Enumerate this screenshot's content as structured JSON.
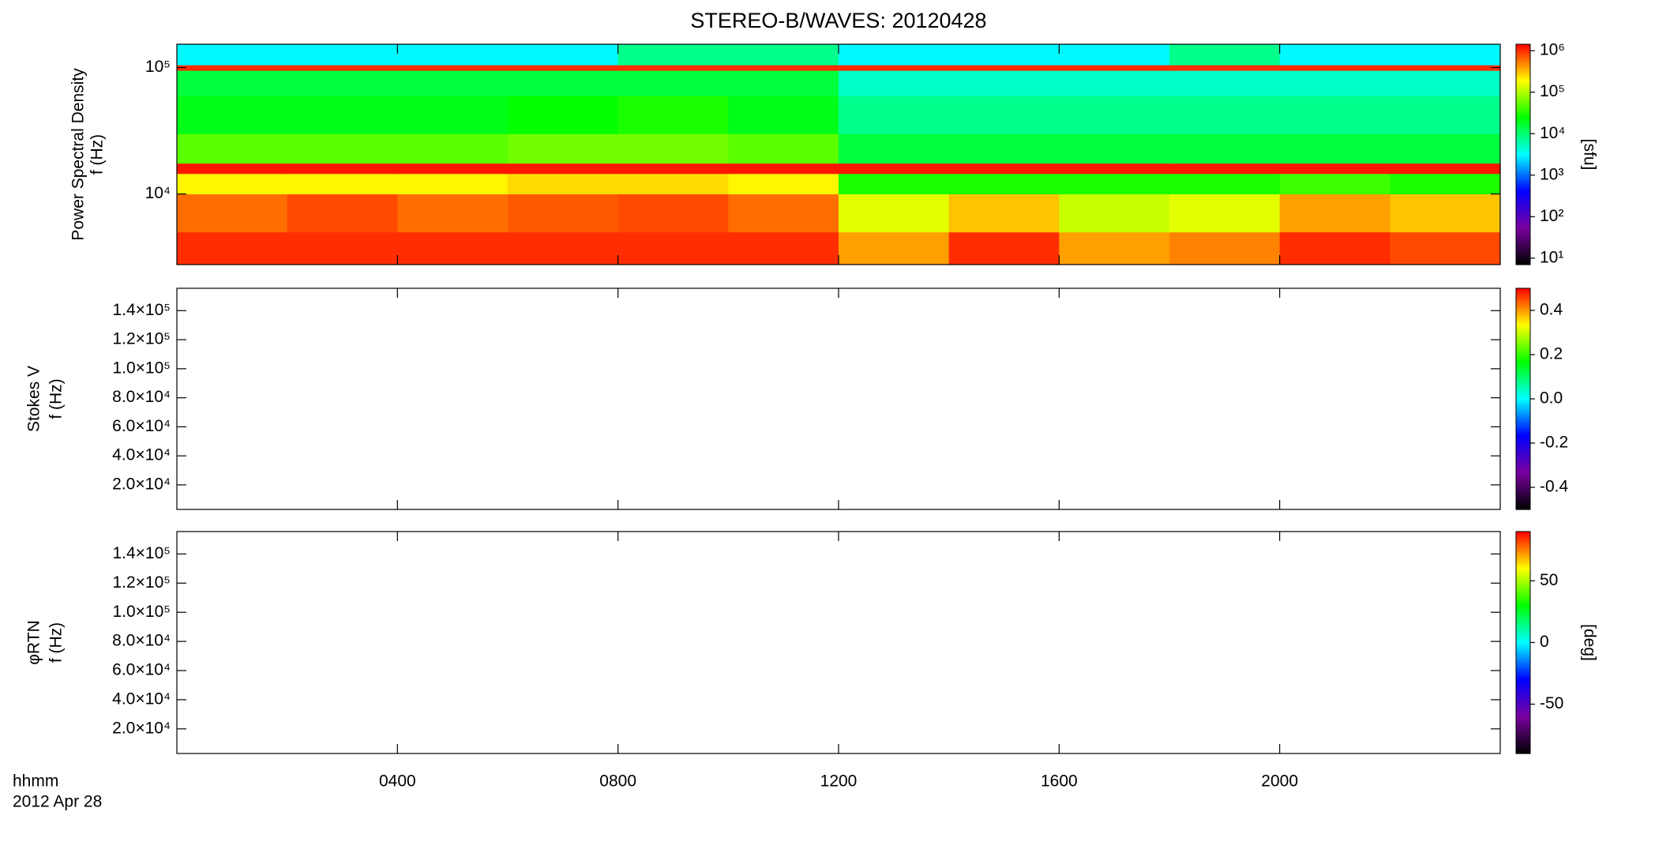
{
  "chart_data": [
    {
      "type": "heatmap",
      "title": "STEREO-B/WAVES: 20120428",
      "ylabel": "Power Spectral Density",
      "ylabel2": "f (Hz)",
      "zlabel": "[sfu]",
      "xlim": [
        0,
        24
      ],
      "ylim": [
        2760,
        153000
      ],
      "ylog": true,
      "yticks": [
        {
          "value": 10000,
          "label": "10⁴"
        },
        {
          "value": 100000,
          "label": "10⁵"
        }
      ],
      "xbins": [
        0,
        2,
        4,
        6,
        8,
        10,
        12,
        14,
        16,
        18,
        20,
        22,
        24
      ],
      "ybins": [
        2760,
        5000,
        10000,
        14500,
        17500,
        30000,
        60000,
        95000,
        105000,
        153000
      ],
      "z": [
        [
          1000000,
          1000000,
          1000000,
          1000000,
          1000000,
          1000000,
          400000,
          1000000,
          400000,
          500000,
          1000000,
          800000
        ],
        [
          600000,
          800000,
          600000,
          700000,
          800000,
          600000,
          150000,
          300000,
          120000,
          150000,
          400000,
          300000
        ],
        [
          200000,
          200000,
          200000,
          250000,
          250000,
          200000,
          30000,
          30000,
          30000,
          30000,
          40000,
          30000
        ],
        [
          1200000,
          1200000,
          1200000,
          1200000,
          1200000,
          1200000,
          1200000,
          1200000,
          1200000,
          1200000,
          1200000,
          1200000
        ],
        [
          50000,
          50000,
          50000,
          60000,
          60000,
          50000,
          15000,
          15000,
          15000,
          15000,
          15000,
          15000
        ],
        [
          20000,
          20000,
          20000,
          25000,
          30000,
          20000,
          8000,
          8000,
          8000,
          8000,
          8000,
          8000
        ],
        [
          15000,
          15000,
          15000,
          15000,
          15000,
          15000,
          5000,
          5000,
          5000,
          5000,
          5000,
          5000
        ],
        [
          1000000,
          1000000,
          1000000,
          1000000,
          1000000,
          1000000,
          1000000,
          1000000,
          1000000,
          1000000,
          1000000,
          1000000
        ],
        [
          3000,
          3000,
          3000,
          3000,
          8000,
          8000,
          3000,
          3000,
          3000,
          8000,
          3000,
          3000
        ]
      ],
      "zlim": [
        7,
        1430000
      ],
      "zlog": true,
      "zticks": [
        {
          "value": 10,
          "label": "10¹"
        },
        {
          "value": 100,
          "label": "10²"
        },
        {
          "value": 1000,
          "label": "10³"
        },
        {
          "value": 10000,
          "label": "10⁴"
        },
        {
          "value": 100000,
          "label": "10⁵"
        },
        {
          "value": 1000000,
          "label": "10⁶"
        }
      ],
      "colorscale": [
        "#000000",
        "#7a00a0",
        "#0000ff",
        "#00ffff",
        "#00ff00",
        "#ffff00",
        "#ff0000"
      ]
    },
    {
      "type": "heatmap",
      "ylabel": "Stokes V",
      "ylabel2": "f (Hz)",
      "xlim": [
        0,
        24
      ],
      "ylim": [
        3100,
        155400
      ],
      "yticks": [
        {
          "value": 20000,
          "label": "2.0×10⁴"
        },
        {
          "value": 40000,
          "label": "4.0×10⁴"
        },
        {
          "value": 60000,
          "label": "6.0×10⁴"
        },
        {
          "value": 80000,
          "label": "8.0×10⁴"
        },
        {
          "value": 100000,
          "label": "1.0×10⁵"
        },
        {
          "value": 120000,
          "label": "1.2×10⁵"
        },
        {
          "value": 140000,
          "label": "1.4×10⁵"
        }
      ],
      "zlim": [
        -0.5,
        0.5
      ],
      "zticks": [
        -0.4,
        -0.2,
        {
          "value": 0,
          "label": "0.0"
        },
        0.2,
        0.4
      ],
      "colorscale": [
        "#000000",
        "#7a00a0",
        "#0000ff",
        "#00ffff",
        "#00ff00",
        "#ffff00",
        "#ff0000"
      ]
    },
    {
      "type": "heatmap",
      "ylabel": "φRTN",
      "ylabel2": "f (Hz)",
      "zlabel": "[deg]",
      "xlabel": "hhmm",
      "date": "2012 Apr 28",
      "xlim": [
        0,
        24
      ],
      "ylim": [
        3100,
        155400
      ],
      "xticks": [
        {
          "value": 4,
          "label": "0400"
        },
        {
          "value": 8,
          "label": "0800"
        },
        {
          "value": 12,
          "label": "1200"
        },
        {
          "value": 16,
          "label": "1600"
        },
        {
          "value": 20,
          "label": "2000"
        }
      ],
      "yticks": [
        {
          "value": 20000,
          "label": "2.0×10⁴"
        },
        {
          "value": 40000,
          "label": "4.0×10⁴"
        },
        {
          "value": 60000,
          "label": "6.0×10⁴"
        },
        {
          "value": 80000,
          "label": "8.0×10⁴"
        },
        {
          "value": 100000,
          "label": "1.0×10⁵"
        },
        {
          "value": 120000,
          "label": "1.2×10⁵"
        },
        {
          "value": 140000,
          "label": "1.4×10⁵"
        }
      ],
      "zlim": [
        -90,
        90
      ],
      "zticks": [
        -50,
        0,
        50
      ],
      "colorscale": [
        "#000000",
        "#7a00a0",
        "#0000ff",
        "#00ffff",
        "#00ff00",
        "#ffff00",
        "#ff0000"
      ]
    }
  ]
}
